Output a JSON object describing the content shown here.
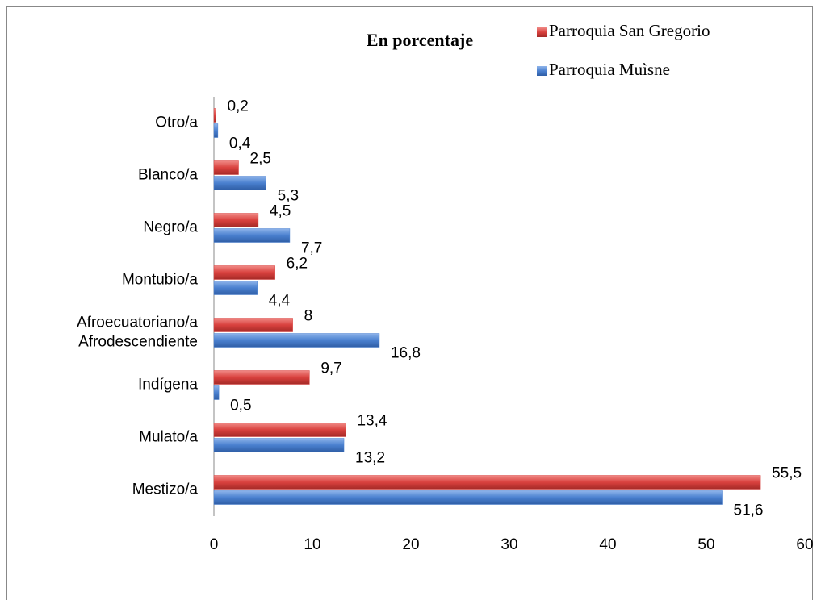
{
  "chart_data": {
    "type": "bar",
    "orientation": "horizontal",
    "title": "En porcentaje",
    "categories": [
      "Otro/a",
      "Blanco/a",
      "Negro/a",
      "Montubio/a",
      "Afroecuatoriano/a\nAfrodescendiente",
      "Indígena",
      "Mulato/a",
      "Mestizo/a"
    ],
    "series": [
      {
        "name": "Parroquia San Gregorio",
        "color": "#d9413e",
        "values": [
          0.2,
          2.5,
          4.5,
          6.2,
          8,
          9.7,
          13.4,
          55.5
        ],
        "value_labels": [
          "0,2",
          "2,5",
          "4,5",
          "6,2",
          "8",
          "9,7",
          "13,4",
          "55,5"
        ]
      },
      {
        "name": "Parroquia Muìsne",
        "color": "#4a80cf",
        "values": [
          0.4,
          5.3,
          7.7,
          4.4,
          16.8,
          0.5,
          13.2,
          51.6
        ],
        "value_labels": [
          "0,4",
          "5,3",
          "7,7",
          "4,4",
          "16,8",
          "0,5",
          "13,2",
          "51,6"
        ]
      }
    ],
    "xlim": [
      0,
      60
    ],
    "xticks": [
      0,
      10,
      20,
      30,
      40,
      50,
      60
    ],
    "legend": "top-right"
  }
}
